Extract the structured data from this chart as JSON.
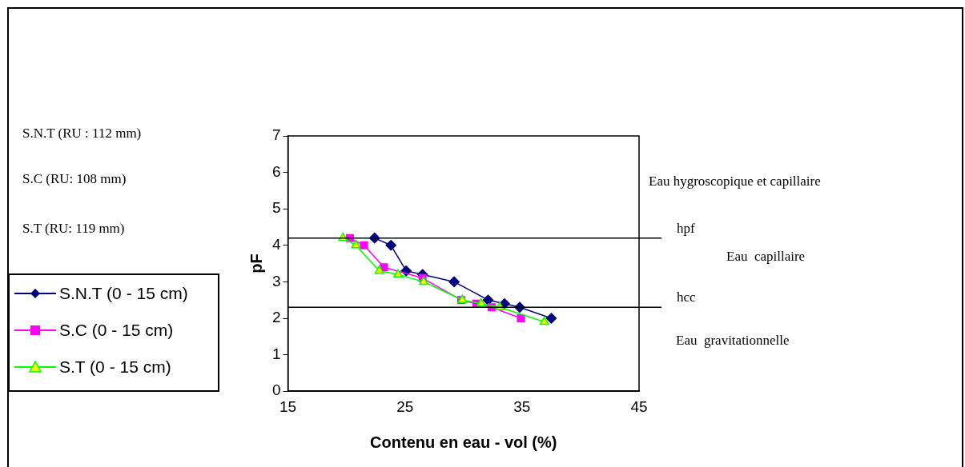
{
  "chart_data": {
    "type": "line",
    "xlabel": "Contenu en eau - vol (%)",
    "ylabel": "pF",
    "xlim": [
      15,
      45
    ],
    "xticks": [
      15,
      25,
      35,
      45
    ],
    "ylim": [
      0,
      7
    ],
    "yticks": [
      0,
      1,
      2,
      3,
      4,
      5,
      6,
      7
    ],
    "grid": false,
    "legend": "left",
    "series": [
      {
        "name": "S.N.T (0 - 15 cm)",
        "color": "#000080",
        "marker": "diamond",
        "x": [
          22.4,
          23.8,
          25.1,
          26.5,
          29.2,
          32.1,
          33.5,
          34.8,
          37.5
        ],
        "values": [
          4.2,
          4.0,
          3.3,
          3.2,
          3.0,
          2.5,
          2.4,
          2.3,
          2.0
        ]
      },
      {
        "name": "S.C (0 - 15 cm)",
        "color": "#ff00ff",
        "marker": "square",
        "x": [
          20.3,
          21.5,
          23.2,
          26.5,
          29.8,
          31.1,
          32.4,
          34.9
        ],
        "values": [
          4.2,
          4.0,
          3.4,
          3.1,
          2.5,
          2.4,
          2.3,
          2.0
        ]
      },
      {
        "name": "S.T (0 - 15 cm)",
        "color": "#00ff00",
        "marker": "triangle",
        "x": [
          19.7,
          20.8,
          22.8,
          24.4,
          26.6,
          29.9,
          31.5,
          33.1,
          36.9
        ],
        "values": [
          4.2,
          4.0,
          3.3,
          3.2,
          3.0,
          2.5,
          2.4,
          2.3,
          1.9
        ]
      }
    ],
    "ref_lines": [
      {
        "axis": "y",
        "value": 4.2,
        "label": "hpf",
        "color": "#000000"
      },
      {
        "axis": "y",
        "value": 2.3,
        "label": "hcc",
        "color": "#000000"
      }
    ],
    "annotations": [
      "S.N.T (RU : 112 mm)",
      "S.C (RU: 108 mm)",
      "S.T (RU: 119 mm)",
      "Eau hygroscopique et capillaire",
      "Eau  capillaire",
      "Eau  gravitationnelle"
    ]
  }
}
